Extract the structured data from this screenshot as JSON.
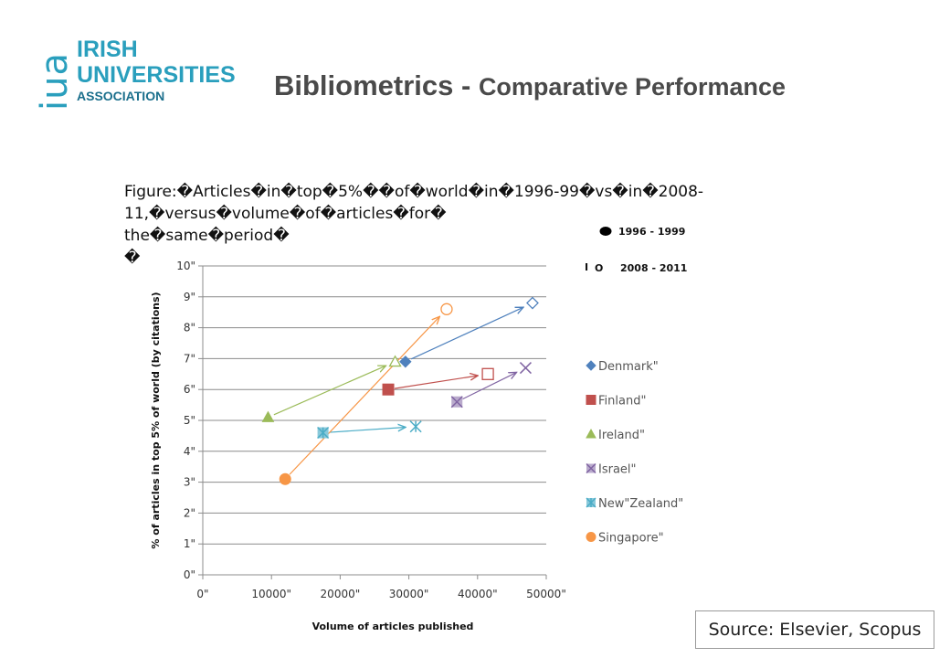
{
  "logo": {
    "mark": "iua",
    "line1": "IRISH",
    "line2": "UNIVERSITIES",
    "line3": "ASSOCIATION"
  },
  "title": {
    "main": "Bibliometrics - ",
    "sub": "Comparative Performance"
  },
  "figure_caption": {
    "line1": "Figure:�Articles�in�top�5%��of�world�in�1996-99�vs�in�2008-11,�versus�volume�of�articles�for�",
    "line2": "the�same�period�",
    "line3": "�"
  },
  "source": "Source: Elsevier, Scopus",
  "chart_data": {
    "type": "scatter",
    "title": "",
    "xlabel": "Volume of articles published",
    "ylabel": "% of articles in top 5% of world (by citations)",
    "xlim": [
      0,
      50000
    ],
    "ylim": [
      0,
      10
    ],
    "x_ticks": [
      "0\"",
      "10000\"",
      "20000\"",
      "30000\"",
      "40000\"",
      "50000\""
    ],
    "y_ticks": [
      "0\"",
      "1\"",
      "2\"",
      "3\"",
      "4\"",
      "5\"",
      "6\"",
      "7\"",
      "8\"",
      "9\"",
      "10\""
    ],
    "grid": "horizontal",
    "period_legend": [
      {
        "marker": "filled",
        "label": "1996 - 1999"
      },
      {
        "marker": "hollow",
        "prefix_mark": "I",
        "symbol": "O",
        "label": "2008 - 2011"
      }
    ],
    "legend_position": "right",
    "series": [
      {
        "name": "Denmark\"",
        "color": "#4f81bd",
        "marker": "diamond",
        "from": [
          29500,
          6.9
        ],
        "to": [
          48000,
          8.8
        ]
      },
      {
        "name": "Finland\"",
        "color": "#c0504d",
        "marker": "square",
        "from": [
          27000,
          6.0
        ],
        "to": [
          41500,
          6.5
        ]
      },
      {
        "name": "Ireland\"",
        "color": "#9bbb59",
        "marker": "triangle",
        "from": [
          9500,
          5.1
        ],
        "to": [
          28000,
          6.9
        ]
      },
      {
        "name": "Israel\"",
        "color": "#8064a2",
        "marker": "x",
        "from": [
          37000,
          5.6
        ],
        "to": [
          47000,
          6.7
        ]
      },
      {
        "name": "New\"Zealand\"",
        "color": "#4bacc6",
        "marker": "star",
        "from": [
          17500,
          4.6
        ],
        "to": [
          31000,
          4.8
        ]
      },
      {
        "name": "Singapore\"",
        "color": "#f79646",
        "marker": "circle",
        "from": [
          12000,
          3.1
        ],
        "to": [
          35500,
          8.6
        ]
      }
    ]
  }
}
